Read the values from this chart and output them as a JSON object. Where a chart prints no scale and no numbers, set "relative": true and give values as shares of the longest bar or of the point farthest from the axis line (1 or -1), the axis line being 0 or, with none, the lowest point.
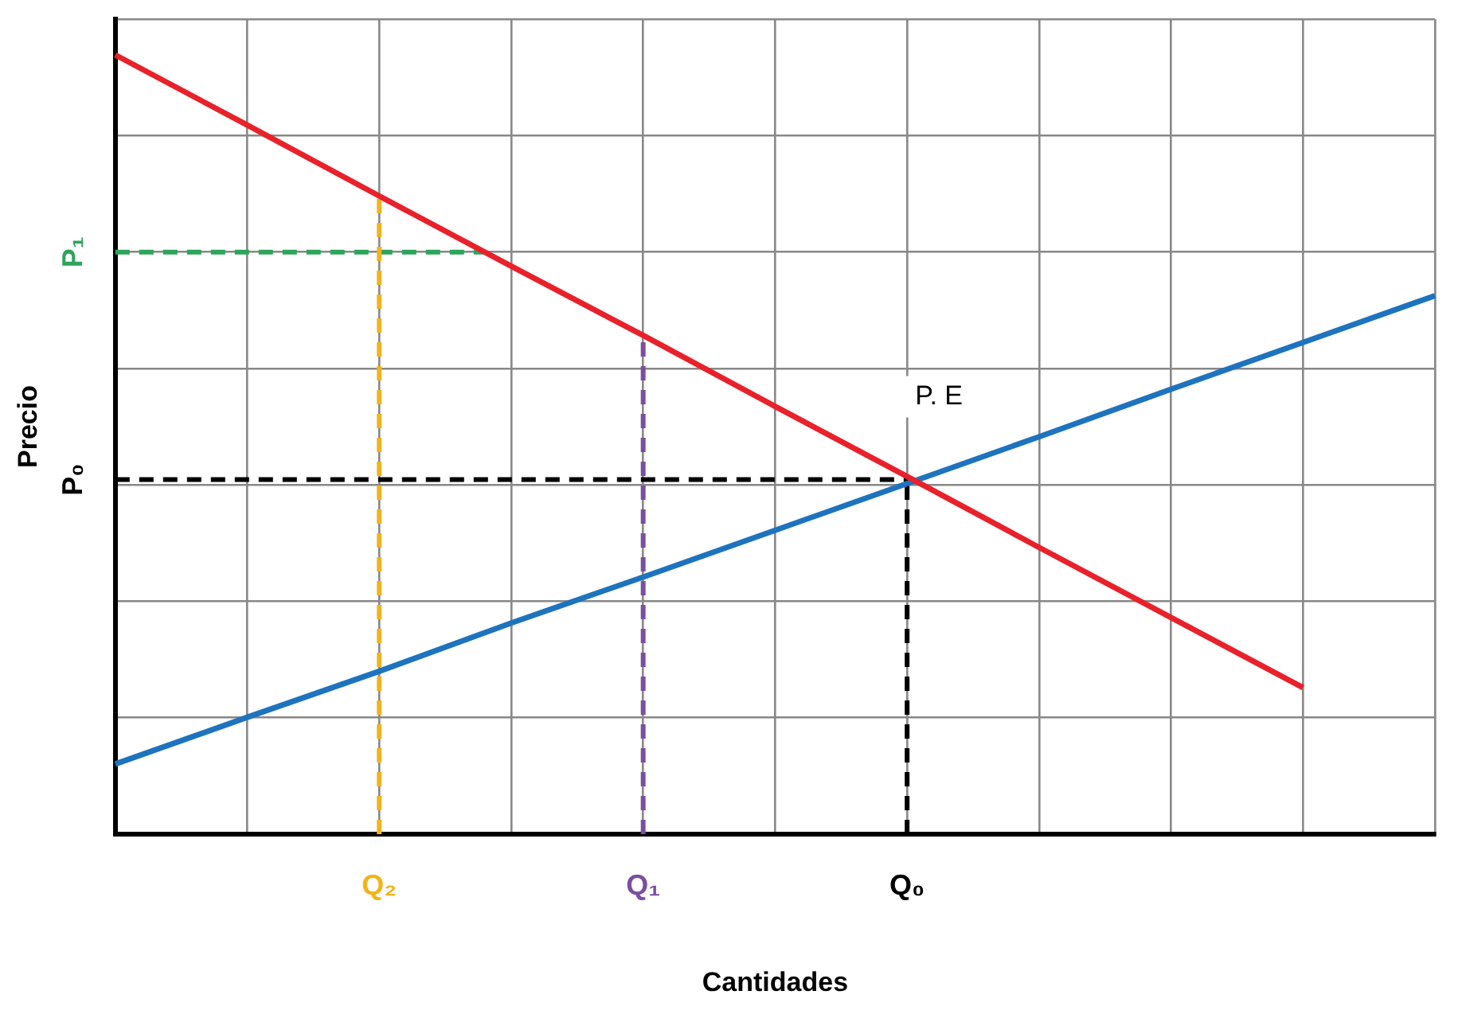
{
  "chart_data": {
    "type": "line",
    "xlabel": "Cantidades",
    "ylabel": "Precio",
    "relative": true,
    "categories": [
      null,
      null,
      "Q₂",
      null,
      "Q₁",
      null,
      "Q₀",
      null,
      null,
      null,
      null
    ],
    "grid": true,
    "legend": false,
    "marker": "none",
    "series": [
      {
        "color": "#e8212a",
        "values": [
          1,
          0.91,
          0.819,
          0.729,
          0.64,
          0.549,
          0.459,
          0.368,
          0.278,
          0.188,
          null
        ]
      },
      {
        "color": "#1e73be",
        "values": [
          0.09,
          0.15,
          0.209,
          0.271,
          0.33,
          0.39,
          0.45,
          0.51,
          0.571,
          0.631,
          0.691
        ]
      }
    ],
    "ref_lines": [
      {
        "axis": "y",
        "value": 0.747,
        "label": "P₁",
        "color": "#2ca55a",
        "line_style": "dashed"
      },
      {
        "axis": "y",
        "value": 0.455,
        "label": "P₀",
        "color": "#000000",
        "line_style": "dashed"
      },
      {
        "axis": "x",
        "value": "Q₂",
        "color": "#f0b41c",
        "line_style": "dashed"
      },
      {
        "axis": "x",
        "value": "Q₁",
        "color": "#7a4fa0",
        "line_style": "dashed"
      },
      {
        "axis": "x",
        "value": "Q₀",
        "color": "#000000",
        "line_style": "dashed"
      }
    ],
    "annotations": [
      {
        "text": "P. E",
        "x": "Q₀",
        "y": 0.455
      }
    ]
  }
}
